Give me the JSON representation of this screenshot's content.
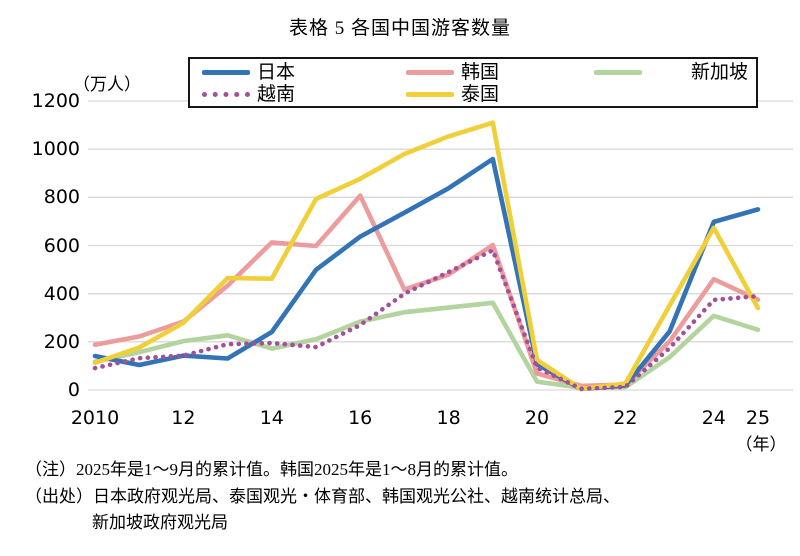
{
  "title": "表格 5 各国中国游客数量",
  "chart_data": {
    "type": "line",
    "title": "表格 5 各国中国游客数量",
    "unit_label": "（万人）",
    "x_unit_label": "（年）",
    "x": [
      2010,
      2011,
      2012,
      2013,
      2014,
      2015,
      2016,
      2017,
      2018,
      2019,
      2020,
      2021,
      2022,
      2023,
      2024,
      2025
    ],
    "xticks": [
      {
        "year": 2010,
        "label": "2010"
      },
      {
        "year": 2012,
        "label": "12"
      },
      {
        "year": 2014,
        "label": "14"
      },
      {
        "year": 2016,
        "label": "16"
      },
      {
        "year": 2018,
        "label": "18"
      },
      {
        "year": 2020,
        "label": "20"
      },
      {
        "year": 2022,
        "label": "22"
      },
      {
        "year": 2024,
        "label": "24"
      },
      {
        "year": 2025,
        "label": "25"
      }
    ],
    "yticks": [
      0,
      200,
      400,
      600,
      800,
      1000,
      1200
    ],
    "ylim": [
      0,
      1200
    ],
    "grid": "horizontal",
    "grid_color": "#d9d9d9",
    "legend_position": "top",
    "series": [
      {
        "key": "japan",
        "name": "日本",
        "color": "#3274b5",
        "style": "solid",
        "values": [
          141,
          104,
          143,
          131,
          241,
          499,
          637,
          736,
          838,
          959,
          107,
          4,
          19,
          243,
          698,
          750
        ]
      },
      {
        "key": "korea",
        "name": "韩国",
        "color": "#ec9c9d",
        "style": "solid",
        "values": [
          188,
          222,
          284,
          433,
          613,
          598,
          807,
          417,
          479,
          602,
          69,
          17,
          23,
          202,
          460,
          375
        ]
      },
      {
        "key": "singapore",
        "name": "新加坡",
        "color": "#b3d39f",
        "style": "solid",
        "values": [
          117,
          157,
          203,
          227,
          172,
          211,
          284,
          323,
          342,
          362,
          35,
          9,
          12,
          136,
          308,
          250
        ]
      },
      {
        "key": "vietnam",
        "name": "越南",
        "color": "#a3509b",
        "style": "dotted",
        "values": [
          91,
          132,
          143,
          190,
          195,
          178,
          270,
          400,
          490,
          580,
          93,
          5,
          13,
          174,
          374,
          390
        ]
      },
      {
        "key": "thailand",
        "name": "泰国",
        "color": "#f0d03a",
        "style": "solid",
        "values": [
          113,
          176,
          279,
          465,
          462,
          793,
          877,
          980,
          1053,
          1110,
          125,
          4,
          27,
          351,
          673,
          340
        ]
      }
    ],
    "draw_order": [
      "singapore",
      "korea",
      "japan",
      "thailand",
      "vietnam"
    ]
  },
  "notes": {
    "line1": "（注）2025年是1～9月的累计值。韩国2025年是1～8月的累计值。",
    "line2": "（出处）日本政府观光局、泰国观光・体育部、韩国观光公社、越南统计总局、",
    "line3": "新加坡政府观光局"
  }
}
